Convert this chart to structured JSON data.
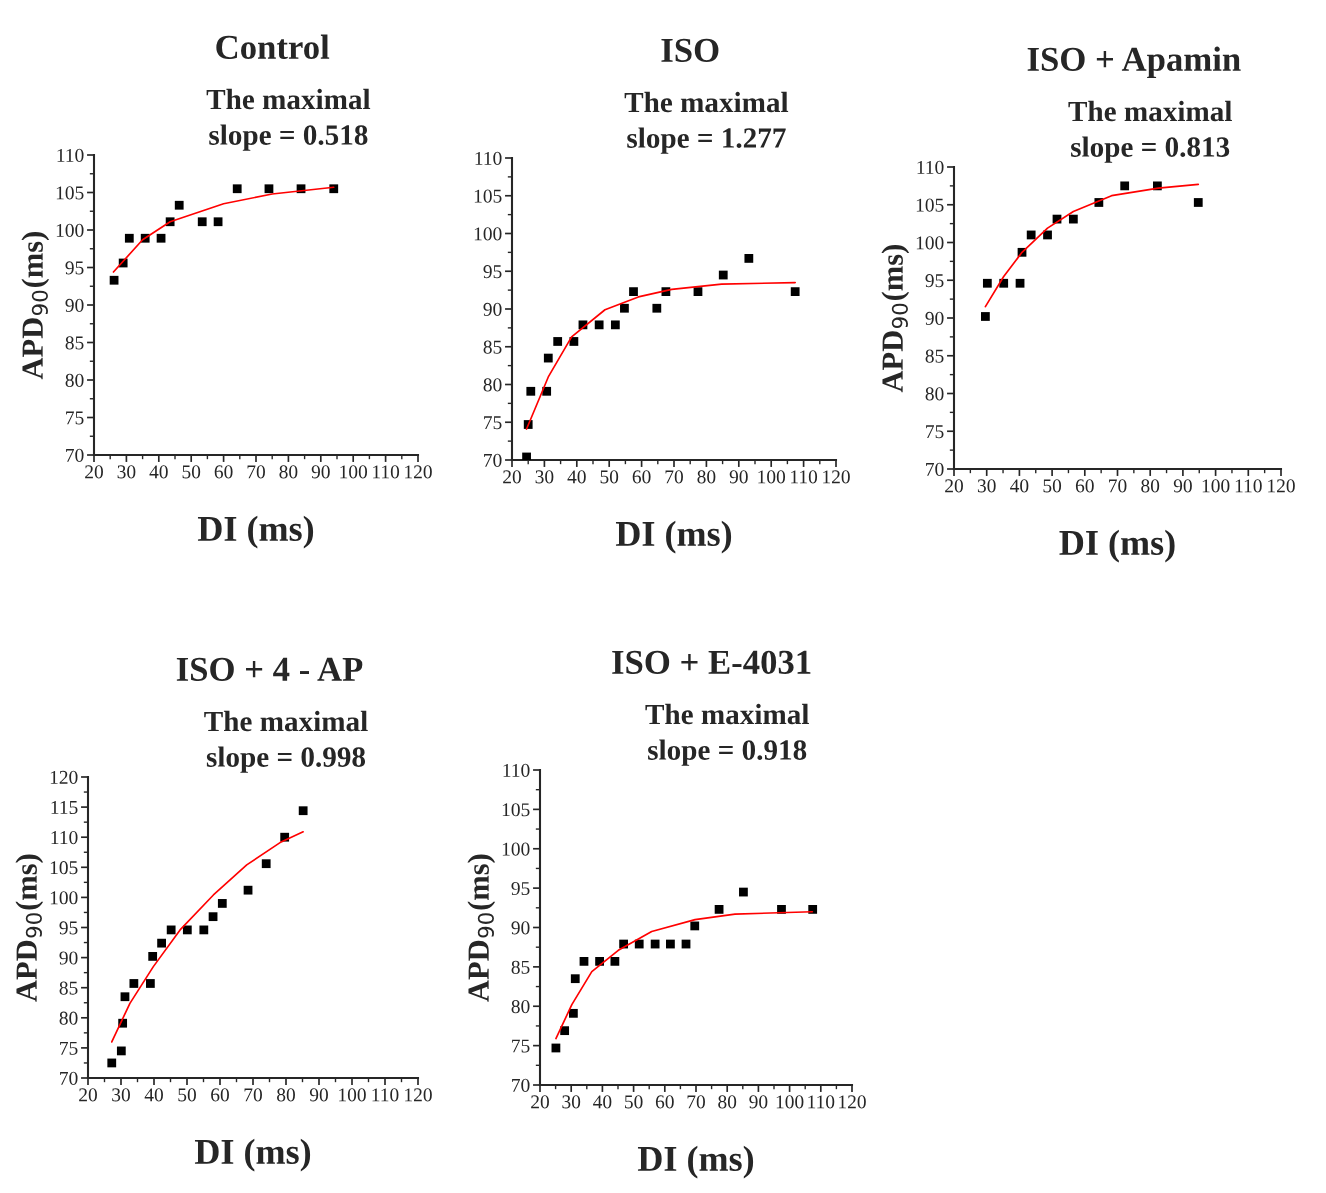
{
  "chart_data": [
    {
      "type": "scatter",
      "title": "Control",
      "subtitle": "The maximal\nslope = 0.518",
      "xlabel": "DI (ms)",
      "ylabel": "APD$_{90}$(ms)",
      "xlim": [
        20,
        120
      ],
      "ylim": [
        70,
        110
      ],
      "xticks": [
        20,
        30,
        40,
        50,
        60,
        70,
        80,
        90,
        100,
        110,
        120
      ],
      "yticks": [
        70,
        75,
        80,
        85,
        90,
        95,
        100,
        105,
        110
      ],
      "series": [
        {
          "type": "scatter",
          "marker": "square",
          "color": "#000000",
          "x": [
            26.2,
            29.0,
            30.9,
            35.8,
            40.7,
            43.5,
            46.3,
            53.4,
            58.3,
            64.2,
            74.0,
            83.9,
            94.0
          ],
          "values": [
            93.3,
            95.6,
            98.9,
            98.9,
            98.9,
            101.1,
            103.3,
            101.1,
            101.1,
            105.5,
            105.5,
            105.5,
            105.5
          ]
        },
        {
          "type": "line",
          "color": "#ff0000",
          "x": [
            26.0,
            35.0,
            43.5,
            60.0,
            75.0,
            94.0
          ],
          "values": [
            94.4,
            98.7,
            101.1,
            103.5,
            104.8,
            105.7
          ]
        }
      ]
    },
    {
      "type": "scatter",
      "title": "ISO",
      "subtitle": "The maximal\nslope = 1.277",
      "xlabel": "DI (ms)",
      "xlim": [
        20,
        120
      ],
      "ylim": [
        70,
        110
      ],
      "xticks": [
        20,
        30,
        40,
        50,
        60,
        70,
        80,
        90,
        100,
        110,
        120
      ],
      "yticks": [
        70,
        75,
        80,
        85,
        90,
        95,
        100,
        105,
        110
      ],
      "series": [
        {
          "type": "scatter",
          "marker": "square",
          "color": "#000000",
          "x": [
            24.5,
            25.0,
            25.8,
            30.7,
            31.2,
            34.1,
            39.1,
            41.9,
            46.9,
            51.9,
            54.7,
            57.5,
            64.7,
            67.5,
            77.4,
            85.2,
            93.1,
            107.4
          ],
          "values": [
            70.4,
            74.7,
            79.1,
            79.1,
            83.5,
            85.7,
            85.7,
            87.9,
            87.9,
            87.9,
            90.1,
            92.3,
            90.1,
            92.3,
            92.3,
            94.5,
            96.7,
            92.3
          ]
        },
        {
          "type": "line",
          "color": "#ff0000",
          "x": [
            24.5,
            31.2,
            38.4,
            48.7,
            59.0,
            69.3,
            84.7,
            107.4
          ],
          "values": [
            74.1,
            81.0,
            86.3,
            89.9,
            91.6,
            92.6,
            93.3,
            93.5
          ]
        }
      ]
    },
    {
      "type": "scatter",
      "title": "ISO + Apamin",
      "subtitle": "The maximal\nslope = 0.813",
      "xlabel": "DI (ms)",
      "ylabel": "APD$_{90}$(ms)",
      "xlim": [
        20,
        120
      ],
      "ylim": [
        70,
        110
      ],
      "xticks": [
        20,
        30,
        40,
        50,
        60,
        70,
        80,
        90,
        100,
        110,
        120
      ],
      "yticks": [
        70,
        75,
        80,
        85,
        90,
        95,
        100,
        105,
        110
      ],
      "series": [
        {
          "type": "scatter",
          "marker": "square",
          "color": "#000000",
          "x": [
            29.6,
            30.2,
            35.2,
            40.2,
            40.8,
            43.6,
            48.6,
            51.5,
            56.5,
            64.3,
            72.2,
            82.2,
            94.7
          ],
          "values": [
            90.2,
            94.6,
            94.6,
            94.6,
            98.7,
            101.0,
            101.0,
            103.1,
            103.1,
            105.3,
            107.5,
            107.5,
            105.3
          ]
        },
        {
          "type": "line",
          "color": "#ff0000",
          "x": [
            29.6,
            35.2,
            40.8,
            48.6,
            56.5,
            68.2,
            82.5,
            94.7
          ],
          "values": [
            91.5,
            95.5,
            98.7,
            101.9,
            104.1,
            106.2,
            107.2,
            107.7
          ]
        }
      ]
    },
    {
      "type": "scatter",
      "title": "ISO + 4 - AP",
      "subtitle": "The maximal\nslope = 0.998",
      "xlabel": "DI (ms)",
      "ylabel": "APD$_{90}$(ms)",
      "xlim": [
        20,
        120
      ],
      "ylim": [
        70,
        120
      ],
      "xticks": [
        20,
        30,
        40,
        50,
        60,
        70,
        80,
        90,
        100,
        110,
        120
      ],
      "yticks": [
        70,
        75,
        80,
        85,
        90,
        95,
        100,
        105,
        110,
        115,
        120
      ],
      "series": [
        {
          "type": "scatter",
          "marker": "square",
          "color": "#000000",
          "x": [
            27.2,
            30.1,
            30.5,
            31.2,
            33.9,
            38.9,
            39.6,
            42.3,
            45.2,
            50.1,
            55.1,
            57.9,
            60.7,
            68.5,
            74.0,
            79.6,
            85.2
          ],
          "values": [
            72.5,
            74.5,
            79.1,
            83.5,
            85.7,
            85.7,
            90.2,
            92.4,
            94.6,
            94.6,
            94.6,
            96.8,
            99.0,
            101.2,
            105.6,
            110.0,
            114.4
          ]
        },
        {
          "type": "line",
          "color": "#ff0000",
          "x": [
            27.2,
            32.7,
            39.8,
            47.9,
            58.0,
            68.1,
            78.2,
            85.2
          ],
          "values": [
            76.0,
            82.4,
            88.5,
            94.6,
            100.4,
            105.4,
            109.1,
            110.9
          ]
        }
      ]
    },
    {
      "type": "scatter",
      "title": "ISO + E-4031",
      "subtitle": "The maximal\nslope = 0.918",
      "xlabel": "DI (ms)",
      "ylabel": "APD$_{90}$(ms)",
      "xlim": [
        20,
        120
      ],
      "ylim": [
        70,
        110
      ],
      "xticks": [
        20,
        30,
        40,
        50,
        60,
        70,
        80,
        90,
        100,
        110,
        120
      ],
      "yticks": [
        70,
        75,
        80,
        85,
        90,
        95,
        100,
        105,
        110
      ],
      "series": [
        {
          "type": "scatter",
          "marker": "square",
          "color": "#000000",
          "x": [
            25.1,
            27.9,
            30.7,
            31.3,
            34.1,
            39.1,
            44.0,
            46.8,
            51.8,
            56.9,
            61.8,
            66.8,
            69.6,
            77.4,
            85.2,
            97.4,
            107.4
          ],
          "values": [
            74.7,
            76.9,
            79.1,
            83.5,
            85.7,
            85.7,
            85.7,
            87.9,
            87.9,
            87.9,
            87.9,
            87.9,
            90.2,
            92.3,
            94.5,
            92.3,
            92.3
          ]
        },
        {
          "type": "line",
          "color": "#ff0000",
          "x": [
            25.1,
            30.2,
            36.6,
            45.1,
            55.8,
            69.7,
            82.5,
            107.3
          ],
          "values": [
            75.9,
            80.2,
            84.4,
            87.1,
            89.5,
            91.0,
            91.7,
            92.0
          ]
        }
      ]
    }
  ]
}
